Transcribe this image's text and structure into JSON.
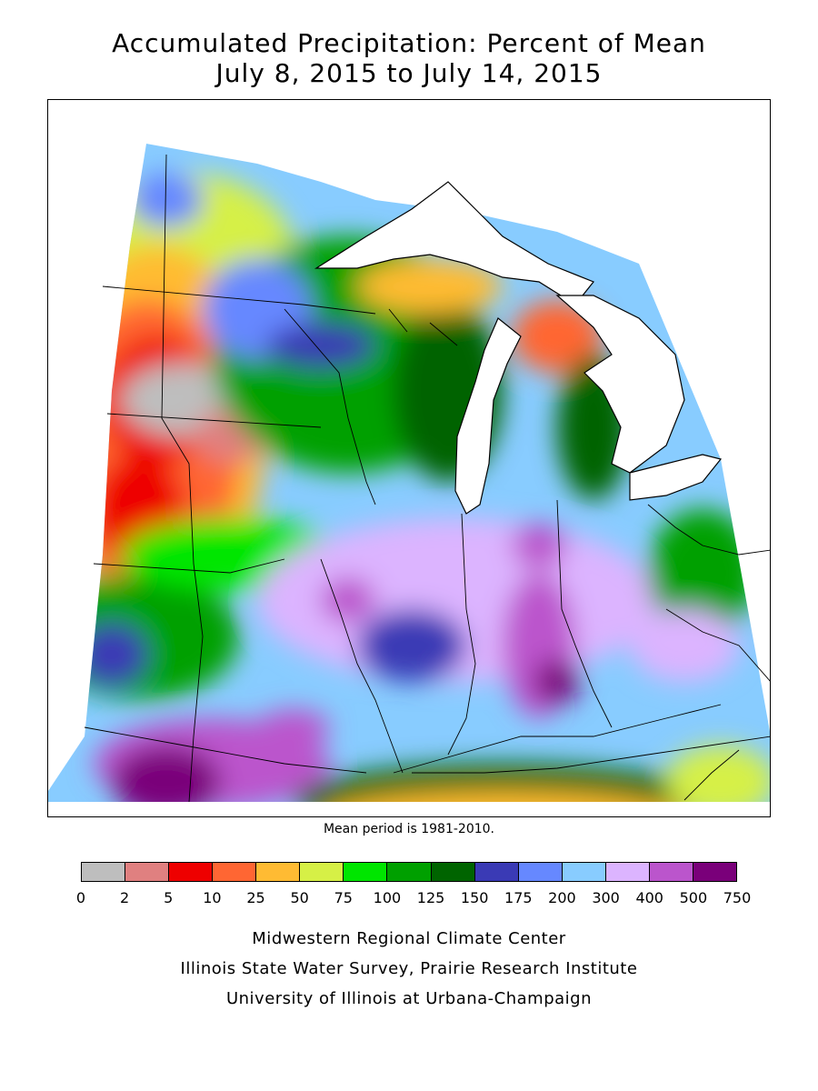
{
  "title_line1": "Accumulated Precipitation: Percent of Mean",
  "title_line2": "July 8, 2015 to July 14, 2015",
  "mean_note": "Mean period is 1981-2010.",
  "legend": {
    "colors": [
      "#bebebe",
      "#e08080",
      "#ee0000",
      "#ff6633",
      "#ffbb33",
      "#d6f046",
      "#00e600",
      "#00a000",
      "#006400",
      "#3a3ab5",
      "#6688ff",
      "#88ccff",
      "#dcb4ff",
      "#bb55cc",
      "#7a007a"
    ],
    "ticks": [
      "0",
      "2",
      "5",
      "10",
      "25",
      "50",
      "75",
      "100",
      "125",
      "150",
      "175",
      "200",
      "300",
      "400",
      "500",
      "750"
    ]
  },
  "credits": [
    "Midwestern Regional Climate Center",
    "Illinois State Water Survey, Prairie Research Institute",
    "University of Illinois at Urbana-Champaign"
  ]
}
